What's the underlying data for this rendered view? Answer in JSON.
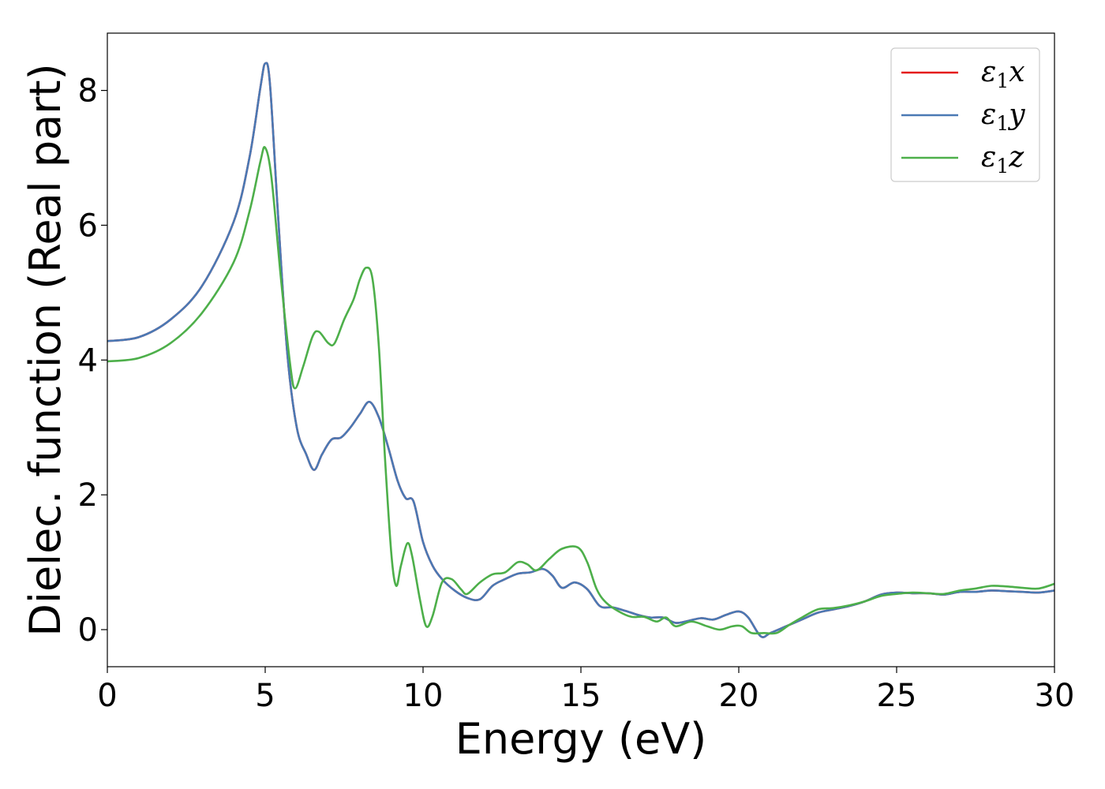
{
  "chart_data": {
    "type": "line",
    "xlabel": "Energy (eV)",
    "ylabel": "Dielec. function (Real part)",
    "xlim": [
      0,
      30
    ],
    "ylim": [
      -0.55,
      8.85
    ],
    "xticks": [
      0,
      5,
      10,
      15,
      20,
      25,
      30
    ],
    "yticks": [
      0,
      2,
      4,
      6,
      8
    ],
    "grid": false,
    "legend_position": "top-right",
    "series": [
      {
        "name": "ε1x",
        "legend_main": "ε",
        "legend_sub": "1",
        "legend_var": "x",
        "color": "#e41a1c",
        "points": [
          [
            0,
            4.28
          ],
          [
            1,
            4.34
          ],
          [
            2,
            4.6
          ],
          [
            3,
            5.1
          ],
          [
            4,
            6.05
          ],
          [
            4.5,
            7.0
          ],
          [
            4.85,
            8.05
          ],
          [
            5.0,
            8.4
          ],
          [
            5.15,
            8.1
          ],
          [
            5.4,
            6.2
          ],
          [
            5.7,
            4.1
          ],
          [
            6.0,
            3.0
          ],
          [
            6.3,
            2.6
          ],
          [
            6.55,
            2.37
          ],
          [
            6.8,
            2.6
          ],
          [
            7.1,
            2.82
          ],
          [
            7.4,
            2.85
          ],
          [
            7.7,
            3.0
          ],
          [
            8.0,
            3.2
          ],
          [
            8.3,
            3.38
          ],
          [
            8.6,
            3.15
          ],
          [
            8.9,
            2.7
          ],
          [
            9.2,
            2.2
          ],
          [
            9.45,
            1.95
          ],
          [
            9.7,
            1.9
          ],
          [
            10.0,
            1.3
          ],
          [
            10.3,
            0.95
          ],
          [
            10.6,
            0.75
          ],
          [
            11.0,
            0.58
          ],
          [
            11.4,
            0.47
          ],
          [
            11.8,
            0.45
          ],
          [
            12.2,
            0.65
          ],
          [
            12.6,
            0.75
          ],
          [
            13.0,
            0.83
          ],
          [
            13.4,
            0.85
          ],
          [
            13.8,
            0.9
          ],
          [
            14.1,
            0.8
          ],
          [
            14.4,
            0.62
          ],
          [
            14.8,
            0.7
          ],
          [
            15.2,
            0.6
          ],
          [
            15.6,
            0.35
          ],
          [
            16.0,
            0.33
          ],
          [
            16.4,
            0.28
          ],
          [
            16.8,
            0.22
          ],
          [
            17.2,
            0.18
          ],
          [
            17.6,
            0.18
          ],
          [
            18.0,
            0.1
          ],
          [
            18.4,
            0.13
          ],
          [
            18.8,
            0.17
          ],
          [
            19.2,
            0.15
          ],
          [
            19.6,
            0.22
          ],
          [
            20.0,
            0.27
          ],
          [
            20.3,
            0.18
          ],
          [
            20.7,
            -0.1
          ],
          [
            21.0,
            -0.05
          ],
          [
            21.5,
            0.05
          ],
          [
            22.0,
            0.15
          ],
          [
            22.5,
            0.25
          ],
          [
            23.0,
            0.3
          ],
          [
            23.5,
            0.35
          ],
          [
            24.0,
            0.42
          ],
          [
            24.5,
            0.52
          ],
          [
            25.0,
            0.55
          ],
          [
            25.5,
            0.54
          ],
          [
            26.0,
            0.54
          ],
          [
            26.5,
            0.52
          ],
          [
            27.0,
            0.56
          ],
          [
            27.5,
            0.56
          ],
          [
            28.0,
            0.58
          ],
          [
            28.5,
            0.57
          ],
          [
            29.0,
            0.56
          ],
          [
            29.5,
            0.55
          ],
          [
            30.0,
            0.58
          ]
        ]
      },
      {
        "name": "ε1y",
        "legend_main": "ε",
        "legend_sub": "1",
        "legend_var": "y",
        "color": "#4a79b4",
        "points": [
          [
            0,
            4.28
          ],
          [
            1,
            4.34
          ],
          [
            2,
            4.6
          ],
          [
            3,
            5.1
          ],
          [
            4,
            6.05
          ],
          [
            4.5,
            7.0
          ],
          [
            4.85,
            8.05
          ],
          [
            5.0,
            8.4
          ],
          [
            5.15,
            8.1
          ],
          [
            5.4,
            6.2
          ],
          [
            5.7,
            4.1
          ],
          [
            6.0,
            3.0
          ],
          [
            6.3,
            2.6
          ],
          [
            6.55,
            2.37
          ],
          [
            6.8,
            2.6
          ],
          [
            7.1,
            2.82
          ],
          [
            7.4,
            2.85
          ],
          [
            7.7,
            3.0
          ],
          [
            8.0,
            3.2
          ],
          [
            8.3,
            3.38
          ],
          [
            8.6,
            3.15
          ],
          [
            8.9,
            2.7
          ],
          [
            9.2,
            2.2
          ],
          [
            9.45,
            1.95
          ],
          [
            9.7,
            1.9
          ],
          [
            10.0,
            1.3
          ],
          [
            10.3,
            0.95
          ],
          [
            10.6,
            0.75
          ],
          [
            11.0,
            0.58
          ],
          [
            11.4,
            0.47
          ],
          [
            11.8,
            0.45
          ],
          [
            12.2,
            0.65
          ],
          [
            12.6,
            0.75
          ],
          [
            13.0,
            0.83
          ],
          [
            13.4,
            0.85
          ],
          [
            13.8,
            0.9
          ],
          [
            14.1,
            0.8
          ],
          [
            14.4,
            0.62
          ],
          [
            14.8,
            0.7
          ],
          [
            15.2,
            0.6
          ],
          [
            15.6,
            0.35
          ],
          [
            16.0,
            0.33
          ],
          [
            16.4,
            0.28
          ],
          [
            16.8,
            0.22
          ],
          [
            17.2,
            0.18
          ],
          [
            17.6,
            0.18
          ],
          [
            18.0,
            0.1
          ],
          [
            18.4,
            0.13
          ],
          [
            18.8,
            0.17
          ],
          [
            19.2,
            0.15
          ],
          [
            19.6,
            0.22
          ],
          [
            20.0,
            0.27
          ],
          [
            20.3,
            0.18
          ],
          [
            20.7,
            -0.1
          ],
          [
            21.0,
            -0.05
          ],
          [
            21.5,
            0.05
          ],
          [
            22.0,
            0.15
          ],
          [
            22.5,
            0.25
          ],
          [
            23.0,
            0.3
          ],
          [
            23.5,
            0.35
          ],
          [
            24.0,
            0.42
          ],
          [
            24.5,
            0.52
          ],
          [
            25.0,
            0.55
          ],
          [
            25.5,
            0.54
          ],
          [
            26.0,
            0.54
          ],
          [
            26.5,
            0.52
          ],
          [
            27.0,
            0.56
          ],
          [
            27.5,
            0.56
          ],
          [
            28.0,
            0.58
          ],
          [
            28.5,
            0.57
          ],
          [
            29.0,
            0.56
          ],
          [
            29.5,
            0.55
          ],
          [
            30.0,
            0.58
          ]
        ]
      },
      {
        "name": "ε1z",
        "legend_main": "ε",
        "legend_sub": "1",
        "legend_var": "z",
        "color": "#4daf4a",
        "points": [
          [
            0,
            3.98
          ],
          [
            1,
            4.03
          ],
          [
            2,
            4.25
          ],
          [
            3,
            4.7
          ],
          [
            4,
            5.45
          ],
          [
            4.5,
            6.2
          ],
          [
            4.85,
            6.95
          ],
          [
            5.0,
            7.15
          ],
          [
            5.2,
            6.7
          ],
          [
            5.5,
            5.2
          ],
          [
            5.8,
            3.9
          ],
          [
            5.95,
            3.58
          ],
          [
            6.2,
            3.9
          ],
          [
            6.5,
            4.35
          ],
          [
            6.7,
            4.42
          ],
          [
            7.0,
            4.25
          ],
          [
            7.2,
            4.25
          ],
          [
            7.5,
            4.6
          ],
          [
            7.8,
            4.9
          ],
          [
            8.0,
            5.2
          ],
          [
            8.2,
            5.37
          ],
          [
            8.4,
            5.2
          ],
          [
            8.6,
            4.2
          ],
          [
            8.8,
            2.5
          ],
          [
            9.0,
            1.1
          ],
          [
            9.15,
            0.65
          ],
          [
            9.3,
            0.95
          ],
          [
            9.5,
            1.28
          ],
          [
            9.65,
            1.1
          ],
          [
            9.9,
            0.45
          ],
          [
            10.1,
            0.05
          ],
          [
            10.3,
            0.2
          ],
          [
            10.6,
            0.7
          ],
          [
            10.9,
            0.75
          ],
          [
            11.2,
            0.6
          ],
          [
            11.4,
            0.53
          ],
          [
            11.8,
            0.7
          ],
          [
            12.2,
            0.82
          ],
          [
            12.6,
            0.85
          ],
          [
            13.0,
            1.0
          ],
          [
            13.3,
            0.97
          ],
          [
            13.6,
            0.88
          ],
          [
            14.0,
            1.05
          ],
          [
            14.4,
            1.2
          ],
          [
            14.9,
            1.22
          ],
          [
            15.2,
            1.0
          ],
          [
            15.5,
            0.6
          ],
          [
            15.8,
            0.4
          ],
          [
            16.2,
            0.27
          ],
          [
            16.6,
            0.19
          ],
          [
            17.0,
            0.19
          ],
          [
            17.4,
            0.12
          ],
          [
            17.7,
            0.18
          ],
          [
            18.0,
            0.05
          ],
          [
            18.5,
            0.12
          ],
          [
            19.0,
            0.05
          ],
          [
            19.4,
            0.0
          ],
          [
            19.8,
            0.05
          ],
          [
            20.1,
            0.05
          ],
          [
            20.4,
            -0.05
          ],
          [
            20.8,
            -0.05
          ],
          [
            21.2,
            -0.05
          ],
          [
            21.6,
            0.07
          ],
          [
            22.0,
            0.18
          ],
          [
            22.5,
            0.3
          ],
          [
            23.0,
            0.32
          ],
          [
            23.5,
            0.36
          ],
          [
            24.0,
            0.42
          ],
          [
            24.5,
            0.5
          ],
          [
            25.0,
            0.53
          ],
          [
            25.5,
            0.55
          ],
          [
            26.0,
            0.54
          ],
          [
            26.5,
            0.53
          ],
          [
            27.0,
            0.58
          ],
          [
            27.5,
            0.61
          ],
          [
            28.0,
            0.65
          ],
          [
            28.5,
            0.64
          ],
          [
            29.0,
            0.62
          ],
          [
            29.5,
            0.61
          ],
          [
            30.0,
            0.68
          ]
        ]
      }
    ]
  }
}
